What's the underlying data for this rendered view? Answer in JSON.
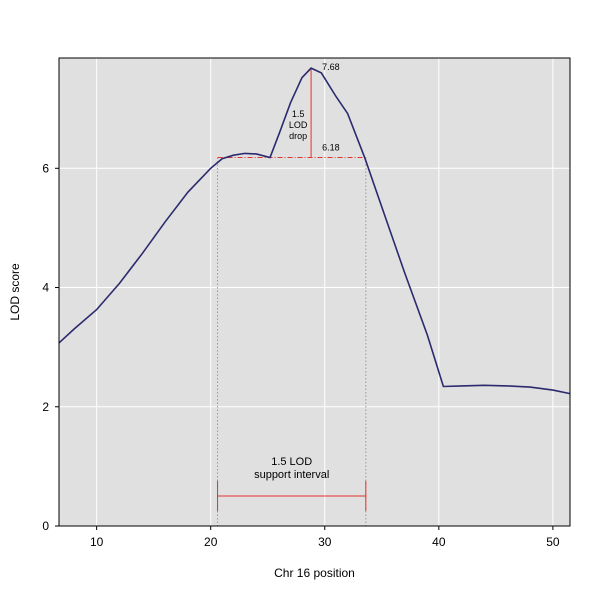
{
  "chart_data": {
    "type": "line",
    "xlabel": "Chr 16 position",
    "ylabel": "LOD score",
    "xlim": [
      6.7,
      51.5
    ],
    "ylim": [
      0,
      7.85
    ],
    "xticks": [
      10,
      20,
      30,
      40,
      50
    ],
    "yticks": [
      0,
      2,
      4,
      6
    ],
    "grid": true,
    "series": [
      {
        "x": [
          6.7,
          8,
          10,
          12,
          14,
          16,
          18,
          20,
          21,
          22,
          23,
          24,
          25.2,
          26,
          27,
          28,
          28.8,
          29.7,
          31,
          32,
          33.5,
          35,
          37,
          39,
          40.4,
          42,
          44,
          46,
          48,
          50,
          51.5
        ],
        "y": [
          3.07,
          3.3,
          3.63,
          4.07,
          4.57,
          5.1,
          5.6,
          6.0,
          6.16,
          6.22,
          6.25,
          6.24,
          6.18,
          6.58,
          7.1,
          7.52,
          7.68,
          7.6,
          7.2,
          6.92,
          6.18,
          5.35,
          4.25,
          3.2,
          2.34,
          2.35,
          2.36,
          2.35,
          2.33,
          2.28,
          2.22
        ]
      }
    ],
    "peak": {
      "x": 28.8,
      "y": 7.68,
      "label": "7.68"
    },
    "drop_level": {
      "y": 6.18,
      "label": "6.18"
    },
    "drop_label": [
      "1.5",
      "LOD",
      "drop"
    ],
    "interval": {
      "x_low": 20.6,
      "x_high": 33.6,
      "label": [
        "1.5 LOD",
        "support interval"
      ]
    },
    "colors": {
      "curve": "#2b2a6e",
      "annotation": "#e8312a",
      "panel": "#e0e0e0",
      "grid": "#ffffff",
      "dotted": "#999999"
    }
  }
}
